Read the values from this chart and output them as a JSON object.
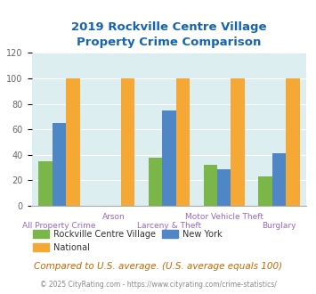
{
  "title": "2019 Rockville Centre Village\nProperty Crime Comparison",
  "categories": [
    "All Property Crime",
    "Arson",
    "Larceny & Theft",
    "Motor Vehicle Theft",
    "Burglary"
  ],
  "series": {
    "Rockville Centre Village": [
      35,
      0,
      38,
      32,
      23
    ],
    "New York": [
      65,
      0,
      75,
      29,
      41
    ],
    "National": [
      100,
      100,
      100,
      100,
      100
    ]
  },
  "colors": {
    "Rockville Centre Village": "#7ab648",
    "New York": "#4f86c6",
    "National": "#f5a833"
  },
  "ylim": [
    0,
    120
  ],
  "yticks": [
    0,
    20,
    40,
    60,
    80,
    100,
    120
  ],
  "bar_width": 0.25,
  "plot_bg": "#ddeef0",
  "fig_bg": "#ffffff",
  "title_color": "#1464b4",
  "title_fontsize": 9.5,
  "tick_label_color": "#9966cc",
  "ytick_color": "#666666",
  "footer_text": "Compared to U.S. average. (U.S. average equals 100)",
  "copyright_text": "© 2025 CityRating.com - https://www.cityrating.com/crime-statistics/",
  "footer_color": "#cc6600",
  "copyright_color": "#888888",
  "xlabel_bottom": [
    "All Property Crime",
    "Larceny & Theft",
    "Burglary"
  ],
  "xlabel_bottom_idx": [
    0,
    2,
    4
  ],
  "xlabel_top": [
    "Arson",
    "Motor Vehicle Theft"
  ],
  "xlabel_top_idx": [
    1,
    3
  ]
}
